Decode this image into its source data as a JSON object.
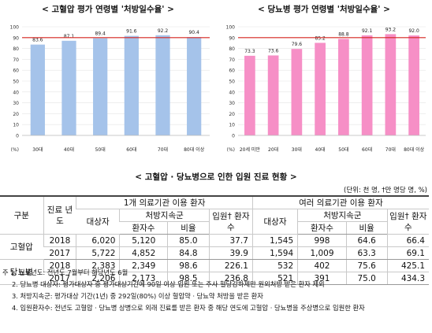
{
  "chart_data": [
    {
      "type": "bar",
      "title": "< 고혈압 평가 연령별 '처방일수율' >",
      "categories": [
        "30대",
        "40대",
        "50대",
        "60대",
        "70대",
        "80대 이상"
      ],
      "values": [
        83.6,
        87.1,
        89.4,
        91.6,
        92.2,
        90.4
      ],
      "value_labels": [
        "83.6",
        "87.1",
        "89.4",
        "91.6",
        "92.2",
        "90.4"
      ],
      "ylabel": "(%)",
      "ylim": [
        0,
        100
      ],
      "yticks": [
        "0",
        "10",
        "20",
        "30",
        "40",
        "50",
        "60",
        "70",
        "80",
        "90",
        "100"
      ],
      "reference_line": 90,
      "bar_color": "#a5c3ea",
      "grid": true
    },
    {
      "type": "bar",
      "title": "< 당뇨병 평가 연령별 '처방일수율' >",
      "categories": [
        "20세 미만",
        "20대",
        "30대",
        "40대",
        "50대",
        "60대",
        "70대",
        "80대 이상"
      ],
      "values": [
        73.3,
        73.6,
        79.6,
        85.2,
        88.8,
        92.1,
        93.2,
        92.0
      ],
      "value_labels": [
        "73.3",
        "73.6",
        "79.6",
        "85.2",
        "88.8",
        "92.1",
        "93.2",
        "92.0"
      ],
      "ylabel": "(%)",
      "ylim": [
        0,
        100
      ],
      "yticks": [
        "0",
        "10",
        "20",
        "30",
        "40",
        "50",
        "60",
        "70",
        "80",
        "90",
        "100"
      ],
      "reference_line": 90,
      "bar_color": "#f68fc6",
      "grid": true
    }
  ],
  "table": {
    "title": "< 고혈압 · 당뇨병으로 인한 입원 진료 현황 >",
    "unit_note": "(단위: 천 명, †만 명당 명, %)",
    "headers": {
      "category": "구분",
      "year": "진료 년도",
      "group1": "1개 의료기관 이용 환자",
      "group2": "여러 의료기관 이용 환자",
      "targets": "대상자",
      "prescribed_group": "처방지속군",
      "patients": "환자수",
      "ratio": "비율",
      "admission": "입원† 환자수"
    },
    "rows": [
      {
        "disease": "고혈압",
        "year": "2018",
        "values": [
          "6,020",
          "5,120",
          "85.0",
          "37.7",
          "1,545",
          "998",
          "64.6",
          "66.4"
        ]
      },
      {
        "disease": "",
        "year": "2017",
        "values": [
          "5,722",
          "4,852",
          "84.8",
          "39.9",
          "1,594",
          "1,009",
          "63.3",
          "69.1"
        ]
      },
      {
        "disease": "당뇨병",
        "year": "2018",
        "values": [
          "2,383",
          "2,349",
          "98.6",
          "226.1",
          "532",
          "402",
          "75.6",
          "425.1"
        ]
      },
      {
        "disease": "",
        "year": "2017",
        "values": [
          "2,206",
          "2,173",
          "98.5",
          "236.8",
          "521",
          "391",
          "75.0",
          "434.3"
        ]
      }
    ]
  },
  "notes": [
    "주  1. 진료년도: 전년도 7월부터 해당년도 6월",
    "2. 당뇨병 대상자: 평가대상자 중 평가대상기간에 90일 이상 입원 또는 주사 혈당강하제만 원외처방 받은 환자 제외",
    "3. 처방지속군: 평가대상 기간(1년) 중 292일(80%) 이상 혈압약 · 당뇨약 처방을 받은 환자",
    "4. 입원환자수: 전년도 고혈압 · 당뇨병 상병으로 외래 진료를 받은 환자 중 해당 연도에 고혈압 · 당뇨병을 주상병으로 입원한 환자"
  ]
}
